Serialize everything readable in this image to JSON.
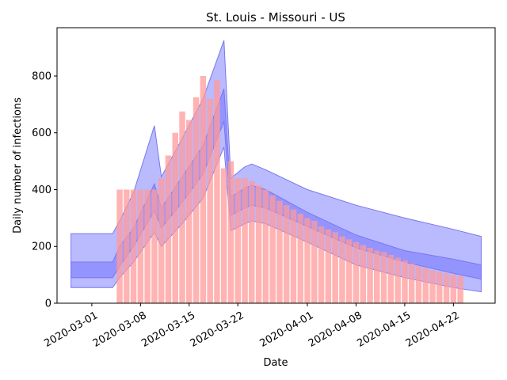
{
  "chart_data": {
    "type": "bar",
    "title": "St. Louis - Missouri - US",
    "xlabel": "Date",
    "ylabel": "Daily number of infections",
    "xlim": [
      "2020-02-25",
      "2020-04-28"
    ],
    "ylim": [
      0,
      970
    ],
    "yticks": [
      0,
      200,
      400,
      600,
      800
    ],
    "xticks": [
      "2020-03-01",
      "2020-03-08",
      "2020-03-15",
      "2020-03-22",
      "2020-04-01",
      "2020-04-08",
      "2020-04-15",
      "2020-04-22"
    ],
    "grid": false,
    "colors": {
      "bars": "#ff9999",
      "band": "#6666ff",
      "band_edge": "#7777ee",
      "axis": "#000000"
    },
    "series": [
      {
        "name": "",
        "kind": "bar",
        "start": "2020-03-05",
        "values": [
          400,
          400,
          400,
          400,
          400,
          400,
          440,
          520,
          600,
          675,
          645,
          725,
          800,
          720,
          785,
          475,
          500,
          440,
          440,
          430,
          415,
          400,
          380,
          360,
          345,
          330,
          315,
          300,
          290,
          270,
          260,
          250,
          235,
          225,
          215,
          205,
          195,
          185,
          180,
          170,
          160,
          150,
          140,
          130,
          125,
          115,
          110,
          105,
          100,
          95
        ]
      },
      {
        "name": "",
        "kind": "band-outer",
        "x": [
          "2020-02-27",
          "2020-03-04",
          "2020-03-05",
          "2020-03-07",
          "2020-03-10",
          "2020-03-11",
          "2020-03-14",
          "2020-03-17",
          "2020-03-20",
          "2020-03-21",
          "2020-03-23",
          "2020-03-24",
          "2020-03-26",
          "2020-04-01",
          "2020-04-08",
          "2020-04-15",
          "2020-04-22",
          "2020-04-26"
        ],
        "upper": [
          245,
          245,
          290,
          390,
          625,
          445,
          580,
          720,
          925,
          440,
          480,
          490,
          470,
          400,
          345,
          300,
          260,
          235
        ],
        "lower": [
          55,
          55,
          90,
          145,
          250,
          200,
          280,
          370,
          550,
          255,
          280,
          290,
          280,
          215,
          135,
          90,
          55,
          40
        ]
      },
      {
        "name": "",
        "kind": "band-inner",
        "x": [
          "2020-02-27",
          "2020-03-04",
          "2020-03-05",
          "2020-03-07",
          "2020-03-10",
          "2020-03-11",
          "2020-03-14",
          "2020-03-17",
          "2020-03-20",
          "2020-03-21",
          "2020-03-23",
          "2020-03-24",
          "2020-03-26",
          "2020-04-01",
          "2020-04-08",
          "2020-04-15",
          "2020-04-22",
          "2020-04-26"
        ],
        "upper": [
          145,
          145,
          200,
          265,
          420,
          335,
          445,
          555,
          755,
          375,
          405,
          415,
          400,
          320,
          240,
          185,
          155,
          135
        ],
        "lower": [
          90,
          90,
          130,
          200,
          325,
          265,
          355,
          455,
          640,
          310,
          335,
          345,
          335,
          270,
          195,
          145,
          105,
          85
        ]
      }
    ]
  }
}
